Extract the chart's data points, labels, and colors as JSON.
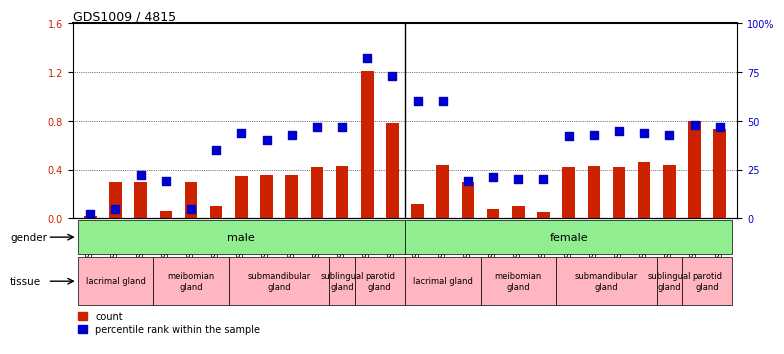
{
  "title": "GDS1009 / 4815",
  "samples": [
    "GSM27176",
    "GSM27177",
    "GSM27178",
    "GSM27181",
    "GSM27182",
    "GSM27183",
    "GSM25995",
    "GSM25996",
    "GSM25997",
    "GSM26000",
    "GSM26001",
    "GSM26004",
    "GSM26005",
    "GSM27173",
    "GSM27174",
    "GSM27175",
    "GSM27179",
    "GSM27180",
    "GSM27184",
    "GSM25992",
    "GSM25993",
    "GSM25994",
    "GSM25998",
    "GSM25999",
    "GSM26002",
    "GSM26003"
  ],
  "count_values": [
    0.02,
    0.3,
    0.3,
    0.06,
    0.3,
    0.1,
    0.35,
    0.36,
    0.36,
    0.42,
    0.43,
    1.21,
    0.78,
    0.12,
    0.44,
    0.3,
    0.08,
    0.1,
    0.05,
    0.42,
    0.43,
    0.42,
    0.46,
    0.44,
    0.8,
    0.73
  ],
  "percentile_values": [
    0.02,
    0.05,
    0.22,
    0.19,
    0.05,
    0.35,
    0.44,
    0.4,
    0.43,
    0.47,
    0.47,
    0.82,
    0.73,
    0.6,
    0.6,
    0.19,
    0.21,
    0.2,
    0.2,
    0.42,
    0.43,
    0.45,
    0.44,
    0.43,
    0.48,
    0.47
  ],
  "bar_color": "#cc2200",
  "dot_color": "#0000cc",
  "ylim_left": [
    0,
    1.6
  ],
  "ylim_right": [
    0,
    100
  ],
  "yticks_left": [
    0,
    0.4,
    0.8,
    1.2,
    1.6
  ],
  "yticks_right": [
    0,
    25,
    50,
    75,
    100
  ],
  "gender_male_label": "male",
  "gender_female_label": "female",
  "gender_color": "#90ee90",
  "tissue_groups": [
    {
      "label": "lacrimal gland",
      "start": 0,
      "end": 2,
      "color": "#ffb6c1"
    },
    {
      "label": "meibomian\ngland",
      "start": 3,
      "end": 5,
      "color": "#ffb6c1"
    },
    {
      "label": "submandibular\ngland",
      "start": 6,
      "end": 9,
      "color": "#ffb6c1"
    },
    {
      "label": "sublingual\ngland",
      "start": 10,
      "end": 10,
      "color": "#ffb6c1"
    },
    {
      "label": "parotid\ngland",
      "start": 11,
      "end": 12,
      "color": "#ffb6c1"
    },
    {
      "label": "lacrimal gland",
      "start": 13,
      "end": 15,
      "color": "#ffb6c1"
    },
    {
      "label": "meibomian\ngland",
      "start": 16,
      "end": 18,
      "color": "#ffb6c1"
    },
    {
      "label": "submandibular\ngland",
      "start": 19,
      "end": 22,
      "color": "#ffb6c1"
    },
    {
      "label": "sublingual\ngland",
      "start": 23,
      "end": 23,
      "color": "#ffb6c1"
    },
    {
      "label": "parotid\ngland",
      "start": 24,
      "end": 25,
      "color": "#ffb6c1"
    }
  ],
  "separator_index": 13,
  "background_color": "#ffffff"
}
